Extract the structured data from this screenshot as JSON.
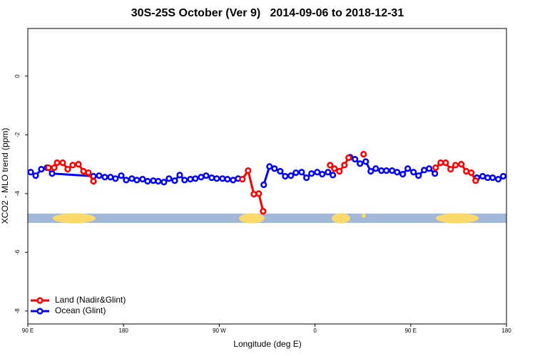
{
  "chart_data": {
    "type": "line",
    "title": "30S-25S October (Ver 9)   2014-09-06 to 2018-12-31",
    "xlabel": "Longitude (deg E)",
    "ylabel": "XCO2 - MLO trend (ppm)",
    "xlim": [
      90,
      540
    ],
    "ylim": [
      -8.44,
      1.62
    ],
    "xticks": [
      {
        "value": 90,
        "label": "90 E"
      },
      180,
      {
        "value": 270,
        "label": "90 W"
      },
      {
        "value": 360,
        "label": "0"
      },
      {
        "value": 450,
        "label": "90 E"
      },
      {
        "value": 540,
        "label": "180"
      }
    ],
    "yticks": [
      0,
      -2,
      -4,
      -6,
      -8
    ],
    "legend": "bottom-left",
    "series": [
      {
        "name": "Land (Nadir&Glint)",
        "color": "#ff0000",
        "x": [
          109.4,
          114.8,
          117.5,
          122.8,
          127.5,
          132.2,
          137.6,
          142.3,
          147.0,
          151.7,
          null,
          291.7,
          297.1,
          302.5,
          307.1,
          311.2,
          null,
          374.2,
          378.2,
          382.9,
          387.6,
          391.6,
          null,
          405.7,
          null,
          473.4,
          478.1,
          482.8,
          487.5,
          492.1,
          497.5,
          502.2,
          506.9,
          511.0
        ],
        "values": [
          -3.12,
          -3.12,
          -2.95,
          -2.95,
          -3.17,
          -3.03,
          -3.0,
          -3.24,
          -3.29,
          -3.58,
          null,
          -3.51,
          -3.22,
          -4.02,
          -4.0,
          -4.6,
          null,
          -3.03,
          -3.15,
          -3.24,
          -3.03,
          -2.78,
          null,
          -2.66,
          null,
          -3.12,
          -2.95,
          -2.95,
          -3.17,
          -3.03,
          -3.0,
          -3.24,
          -3.29,
          -3.56
        ]
      },
      {
        "name": "Ocean (Glint)",
        "color": "#0000ff",
        "x": [
          92.7,
          97.4,
          102.7,
          108.1,
          112.8,
          151.7,
          157.0,
          162.4,
          167.7,
          172.4,
          177.8,
          182.5,
          187.8,
          192.5,
          197.9,
          202.6,
          208.0,
          212.6,
          218.0,
          222.7,
          228.1,
          232.8,
          237.4,
          242.8,
          247.5,
          252.9,
          257.6,
          262.9,
          267.6,
          273.0,
          277.7,
          283.0,
          287.7,
          null,
          311.8,
          317.2,
          321.9,
          327.3,
          332.0,
          337.3,
          342.0,
          347.4,
          352.0,
          356.7,
          362.1,
          366.8,
          372.2,
          376.8,
          null,
          392.9,
          397.6,
          402.3,
          407.7,
          412.4,
          417.1,
          422.4,
          427.1,
          432.5,
          437.2,
          442.5,
          447.2,
          452.6,
          457.3,
          462.6,
          467.3,
          472.7,
          null,
          512.2,
          517.6,
          522.3,
          527.0,
          532.3,
          537.0
        ],
        "values": [
          -3.27,
          -3.39,
          -3.17,
          -3.12,
          -3.32,
          -3.41,
          -3.39,
          -3.44,
          -3.44,
          -3.49,
          -3.39,
          -3.54,
          -3.49,
          -3.54,
          -3.51,
          -3.58,
          -3.56,
          -3.58,
          -3.61,
          -3.49,
          -3.56,
          -3.37,
          -3.54,
          -3.51,
          -3.49,
          -3.44,
          -3.39,
          -3.46,
          -3.49,
          -3.49,
          -3.51,
          -3.54,
          -3.49,
          null,
          -3.7,
          -3.08,
          -3.15,
          -3.24,
          -3.41,
          -3.39,
          -3.29,
          -3.27,
          -3.46,
          -3.32,
          -3.27,
          -3.34,
          -3.27,
          -3.37,
          null,
          -2.76,
          -2.83,
          -2.98,
          -2.91,
          -3.24,
          -3.15,
          -3.22,
          -3.22,
          -3.22,
          -3.27,
          -3.34,
          -3.15,
          -3.27,
          -3.39,
          -3.2,
          -3.15,
          -3.32,
          null,
          -3.46,
          -3.41,
          -3.46,
          -3.46,
          -3.51,
          -3.41
        ]
      }
    ]
  }
}
